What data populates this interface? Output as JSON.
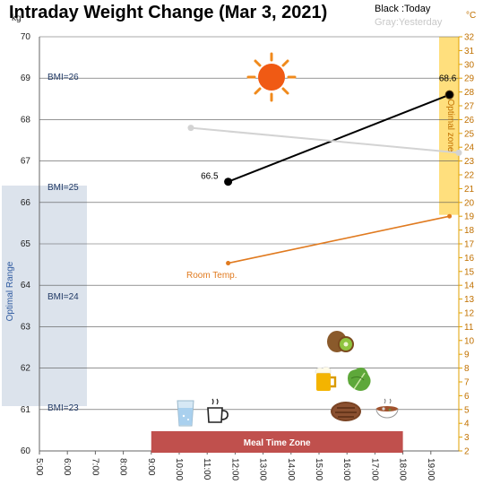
{
  "title": "Intraday Weight Change (Mar 3, 2021)",
  "legend": {
    "today": "Black :Today",
    "yesterday": "Gray:Yesterday"
  },
  "units": {
    "left": "kg",
    "right": "°C"
  },
  "colors": {
    "today": "#000000",
    "yesterday": "#d3d3d3",
    "temp": "#e07a1f",
    "optimal_range": "#dce3ec",
    "optimal_zone": "#ffd966",
    "meal_zone": "#c0504d"
  },
  "annotations": {
    "optimal_range": "Optimal Range",
    "optimal_zone": "Optimal zone",
    "meal_zone": "Meal Time Zone",
    "room_temp": "Room Temp."
  },
  "icons": [
    "sun-icon",
    "water-glass-icon",
    "coffee-cup-icon",
    "kiwi-icon",
    "beer-mug-icon",
    "lettuce-icon",
    "steak-icon",
    "soup-bowl-icon"
  ],
  "chart_data": {
    "type": "line",
    "x_ticks": [
      "5:00",
      "6:00",
      "7:00",
      "8:00",
      "9:00",
      "10:00",
      "11:00",
      "12:00",
      "13:00",
      "14:00",
      "15:00",
      "16:00",
      "17:00",
      "18:00",
      "19:00"
    ],
    "xlim": [
      "5:00",
      "20:00"
    ],
    "y_ticks": [
      60,
      61,
      62,
      63,
      64,
      65,
      66,
      67,
      68,
      69,
      70
    ],
    "ylim": [
      60,
      70
    ],
    "ylabel": "kg",
    "y2_ticks": [
      2,
      3,
      4,
      5,
      6,
      7,
      8,
      9,
      10,
      11,
      12,
      13,
      14,
      15,
      16,
      17,
      18,
      19,
      20,
      21,
      22,
      23,
      24,
      25,
      26,
      27,
      28,
      29,
      30,
      31,
      32
    ],
    "y2lim": [
      2,
      32
    ],
    "y2label": "°C",
    "bmi_lines": [
      {
        "label": "BMI=26",
        "weight": 69
      },
      {
        "label": "BMI=25",
        "weight": 66.4
      },
      {
        "label": "BMI=24",
        "weight": 63.7
      },
      {
        "label": "BMI=23",
        "weight": 61
      }
    ],
    "optimal_range": {
      "x_from": "5:00",
      "x_to": "6:40",
      "y_from": 61.1,
      "y_to": 66.4
    },
    "optimal_zone": {
      "x_from": "19:20",
      "x_to": "20:00",
      "y_from": 65.7,
      "y_to": 70
    },
    "meal_zone": {
      "x_from": "9:00",
      "x_to": "18:00"
    },
    "series": [
      {
        "name": "Today",
        "axis": "left",
        "points": [
          {
            "x": "11:45",
            "y": 66.5,
            "label": "66.5"
          },
          {
            "x": "19:40",
            "y": 68.6,
            "label": "68.6"
          }
        ]
      },
      {
        "name": "Yesterday",
        "axis": "left",
        "points": [
          {
            "x": "10:25",
            "y": 67.8
          },
          {
            "x": "20:00",
            "y": 67.2
          }
        ]
      },
      {
        "name": "Room Temp.",
        "axis": "right",
        "points": [
          {
            "x": "11:45",
            "y": 15.6
          },
          {
            "x": "19:40",
            "y": 19.0
          }
        ]
      }
    ]
  }
}
